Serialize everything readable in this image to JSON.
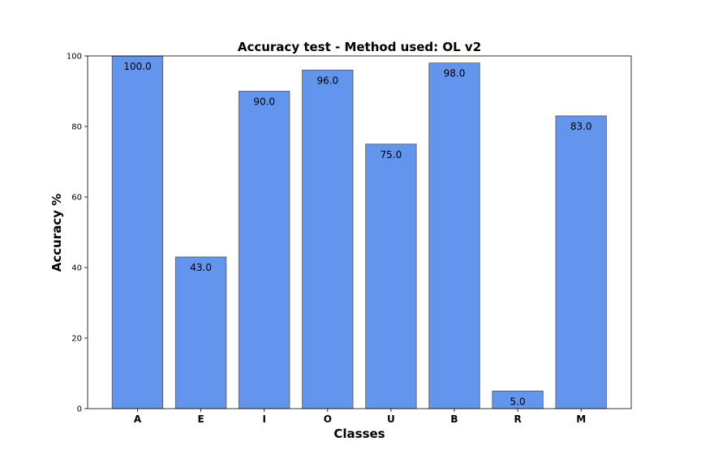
{
  "chart_data": {
    "type": "bar",
    "title": "Accuracy test - Method used: OL v2",
    "xlabel": "Classes",
    "ylabel": "Accuracy %",
    "categories": [
      "A",
      "E",
      "I",
      "O",
      "U",
      "B",
      "R",
      "M"
    ],
    "values": [
      100.0,
      43.0,
      90.0,
      96.0,
      75.0,
      98.0,
      5.0,
      83.0
    ],
    "data_labels": [
      "100.0",
      "43.0",
      "90.0",
      "96.0",
      "75.0",
      "98.0",
      "5.0",
      "83.0"
    ],
    "ylim": [
      0,
      100
    ],
    "yticks": [
      "0",
      "20",
      "40",
      "60",
      "80",
      "100"
    ],
    "bar_color": "#6495ED",
    "grid": false,
    "legend": "none"
  }
}
